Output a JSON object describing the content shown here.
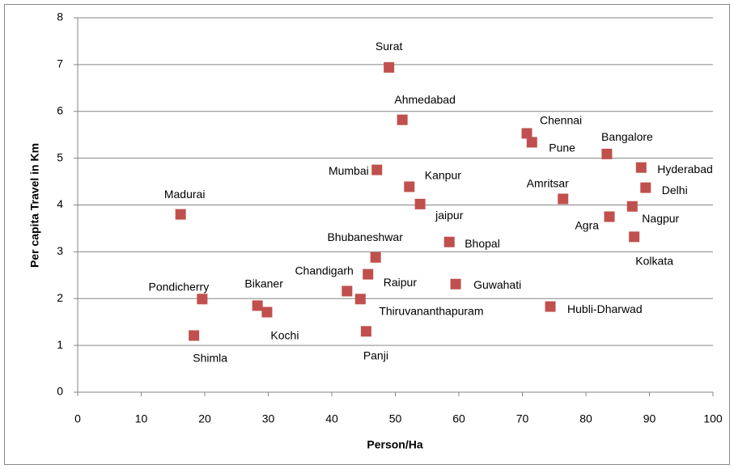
{
  "chart_data": {
    "type": "scatter",
    "xlabel": "Person/Ha",
    "ylabel": "Per capita Travel  in Km",
    "labels": [
      "Surat",
      "Ahmedabad",
      "Chennai",
      "Pune",
      "Bangalore",
      "Hyderabad",
      "Delhi",
      "Mumbai",
      "Kanpur",
      "jaipur",
      "Amritsar",
      "Nagpur",
      "Agra",
      "Madurai",
      "Kolkata",
      "Bhopal",
      "Bhubaneshwar",
      "Raipur",
      "Chandigarh",
      "Thiruvananthapuram",
      "Guwahati",
      "Hubli-Dharwad",
      "Pondicherry",
      "Bikaner",
      "Kochi",
      "Shimla",
      "Panji"
    ],
    "x": [
      49.0,
      51.1,
      70.7,
      71.5,
      83.3,
      88.7,
      89.4,
      47.1,
      52.2,
      53.9,
      76.4,
      87.3,
      83.7,
      16.2,
      87.6,
      58.5,
      46.9,
      45.7,
      42.4,
      44.5,
      59.5,
      74.4,
      19.6,
      28.3,
      29.8,
      18.3,
      45.4
    ],
    "values": [
      6.94,
      5.82,
      5.53,
      5.34,
      5.09,
      4.8,
      4.37,
      4.75,
      4.39,
      4.02,
      4.13,
      3.97,
      3.75,
      3.8,
      3.32,
      3.21,
      2.88,
      2.52,
      2.16,
      1.99,
      2.31,
      1.83,
      1.99,
      1.85,
      1.71,
      1.21,
      1.3
    ],
    "color": "#c0504d",
    "xlim": [
      0,
      100
    ],
    "xticks": [
      0,
      10,
      20,
      30,
      40,
      50,
      60,
      70,
      80,
      90,
      100
    ],
    "ylim": [
      0,
      8
    ],
    "yticks": [
      0,
      1,
      2,
      3,
      4,
      5,
      6,
      7,
      8
    ],
    "grid": true
  }
}
